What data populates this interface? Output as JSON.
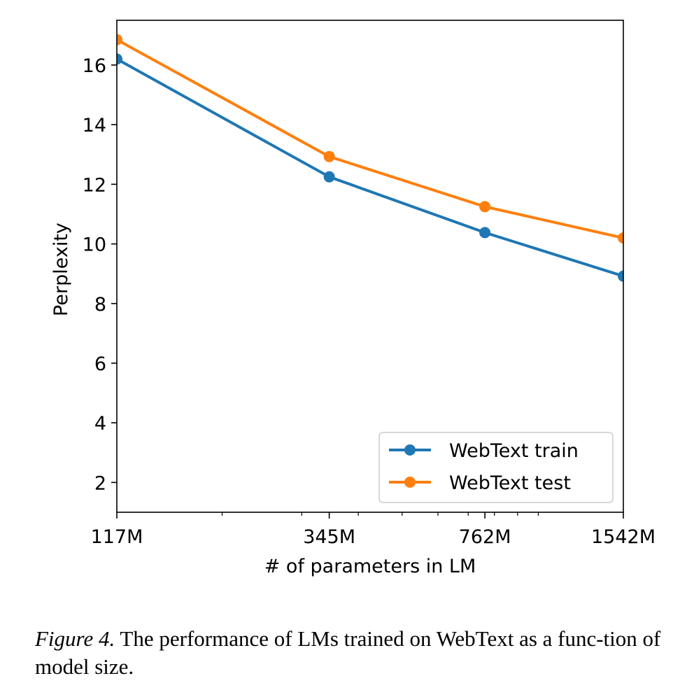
{
  "chart_data": {
    "type": "line",
    "x_scale": "log",
    "categories": [
      "117M",
      "345M",
      "762M",
      "1542M"
    ],
    "x": [
      117,
      345,
      762,
      1542
    ],
    "series": [
      {
        "name": "WebText train",
        "values": [
          16.2,
          12.25,
          10.38,
          8.92
        ],
        "color": "#1f77b4"
      },
      {
        "name": "WebText test",
        "values": [
          16.85,
          12.93,
          11.25,
          10.2
        ],
        "color": "#ff7f0e"
      }
    ],
    "xlabel": "# of parameters in LM",
    "ylabel": "Perplexity",
    "ylim": [
      1,
      17.5
    ],
    "yticks": [
      2,
      4,
      6,
      8,
      10,
      12,
      14,
      16
    ],
    "xlim": [
      117,
      1542
    ],
    "grid": false,
    "legend_position": "lower-right"
  },
  "caption": {
    "label": "Figure 4.",
    "text": " The performance of LMs trained on WebText as a func-tion of model size."
  }
}
